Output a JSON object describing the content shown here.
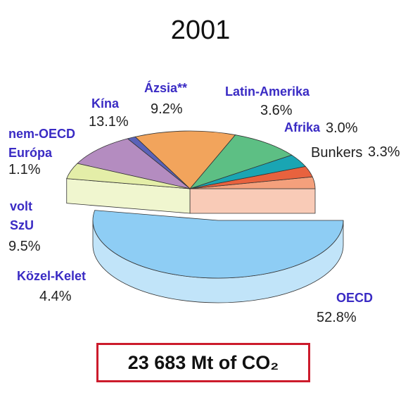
{
  "chart_data": {
    "type": "pie",
    "title": "2001",
    "categories": [
      "OECD",
      "Bunkers",
      "Afrika",
      "Latin-Amerika",
      "Ázsia**",
      "Kína",
      "nem-OECD Európa",
      "volt SzU",
      "Közel-Kelet"
    ],
    "values": [
      52.8,
      3.3,
      3.0,
      3.6,
      9.2,
      13.1,
      1.1,
      9.5,
      4.4
    ],
    "value_labels": [
      "52.8%",
      "3.3%",
      "3.0%",
      "3.6%",
      "9.2%",
      "13.1%",
      "1.1%",
      "9.5%",
      "4.4%"
    ],
    "colors": [
      "#8ecdf4",
      "#f4a07c",
      "#e8623e",
      "#1aa5b3",
      "#5dbf84",
      "#f2a45c",
      "#5a62b8",
      "#b48cc0",
      "#e4eea8"
    ],
    "total_label": "23 683 Mt of CO₂"
  }
}
